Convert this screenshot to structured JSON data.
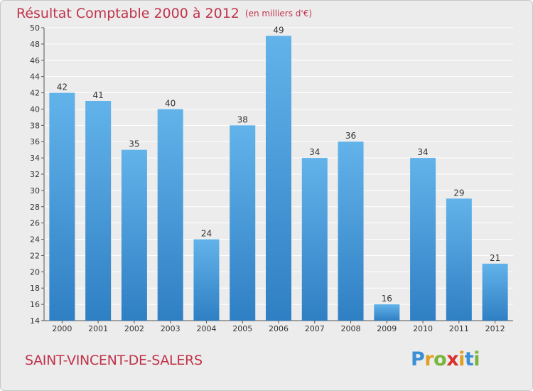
{
  "title": {
    "main": "Résultat Comptable 2000 à 2012",
    "unit": "(en milliers d'€)"
  },
  "commune": "SAINT-VINCENT-DE-SALERS",
  "logo": {
    "letters": [
      {
        "ch": "P",
        "color": "#3a8fd6"
      },
      {
        "ch": "r",
        "color": "#e0a020"
      },
      {
        "ch": "o",
        "color": "#7ab43a"
      },
      {
        "ch": "x",
        "color": "#d8312e"
      },
      {
        "ch": "i",
        "color": "#e0a020"
      },
      {
        "ch": "t",
        "color": "#3a8fd6"
      },
      {
        "ch": "i",
        "color": "#7ab43a"
      }
    ]
  },
  "colors": {
    "bar_top": "#62b3ea",
    "bar_bottom": "#2f7fc4",
    "title": "#c0334a",
    "grid": "#ffffff"
  },
  "chart_data": {
    "type": "bar",
    "title": "Résultat Comptable 2000 à 2012",
    "subtitle": "(en milliers d'€)",
    "xlabel": "",
    "ylabel": "",
    "categories": [
      "2000",
      "2001",
      "2002",
      "2003",
      "2004",
      "2005",
      "2006",
      "2007",
      "2008",
      "2009",
      "2010",
      "2011",
      "2012"
    ],
    "values": [
      42,
      41,
      35,
      40,
      24,
      38,
      49,
      34,
      36,
      16,
      34,
      29,
      21
    ],
    "ylim": [
      14,
      50
    ],
    "yticks": [
      14,
      16,
      18,
      20,
      22,
      24,
      26,
      28,
      30,
      32,
      34,
      36,
      38,
      40,
      42,
      44,
      46,
      48,
      50
    ],
    "grid": true
  }
}
